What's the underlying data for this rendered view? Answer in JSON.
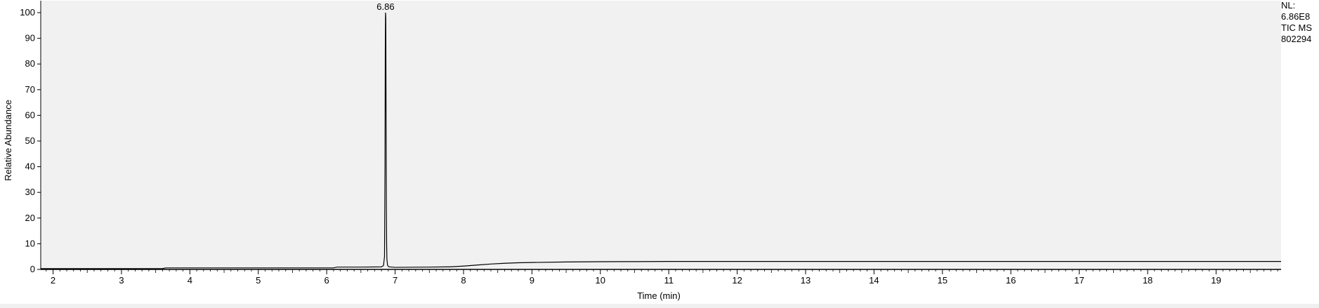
{
  "info": {
    "nl_label": "NL:",
    "nl_value": "6.86E8",
    "scan_label": "TIC  MS",
    "file_id": "802294"
  },
  "colors": {
    "plot_background": "#f1f1f1",
    "trace": "#000000",
    "axis": "#000000"
  },
  "chart_data": {
    "type": "line",
    "xlabel": "Time (min)",
    "ylabel": "Relative Abundance",
    "xlim": [
      1.82,
      19.95
    ],
    "ylim": [
      0,
      100
    ],
    "x_ticks": [
      2,
      3,
      4,
      5,
      6,
      7,
      8,
      9,
      10,
      11,
      12,
      13,
      14,
      15,
      16,
      17,
      18,
      19
    ],
    "y_ticks": [
      0,
      10,
      20,
      30,
      40,
      50,
      60,
      70,
      80,
      90,
      100
    ],
    "grid": false,
    "peak_annotations": [
      {
        "x": 6.86,
        "y": 100,
        "label": "6.86"
      }
    ],
    "series": [
      {
        "x": [
          1.82,
          3.0,
          3.6,
          3.65,
          5.0,
          6.1,
          6.15,
          6.5,
          6.8,
          6.83,
          6.845,
          6.852,
          6.856,
          6.86,
          6.864,
          6.868,
          6.872,
          6.876,
          6.88,
          6.89,
          6.91,
          6.95,
          7.0,
          7.5,
          7.8,
          8.0,
          8.2,
          8.4,
          8.6,
          8.8,
          9.0,
          9.5,
          10.0,
          10.5,
          11.0,
          12.0,
          14.0,
          16.0,
          18.0,
          19.95
        ],
        "y": [
          0.3,
          0.3,
          0.35,
          0.6,
          0.6,
          0.6,
          0.9,
          0.9,
          1.0,
          1.5,
          5,
          40,
          85,
          100,
          98,
          60,
          24,
          10,
          4,
          1.5,
          1.0,
          0.9,
          0.8,
          0.9,
          1.0,
          1.3,
          1.7,
          2.1,
          2.4,
          2.6,
          2.7,
          2.9,
          3.0,
          3.05,
          3.1,
          3.1,
          3.1,
          3.1,
          3.1,
          3.1
        ]
      }
    ]
  }
}
